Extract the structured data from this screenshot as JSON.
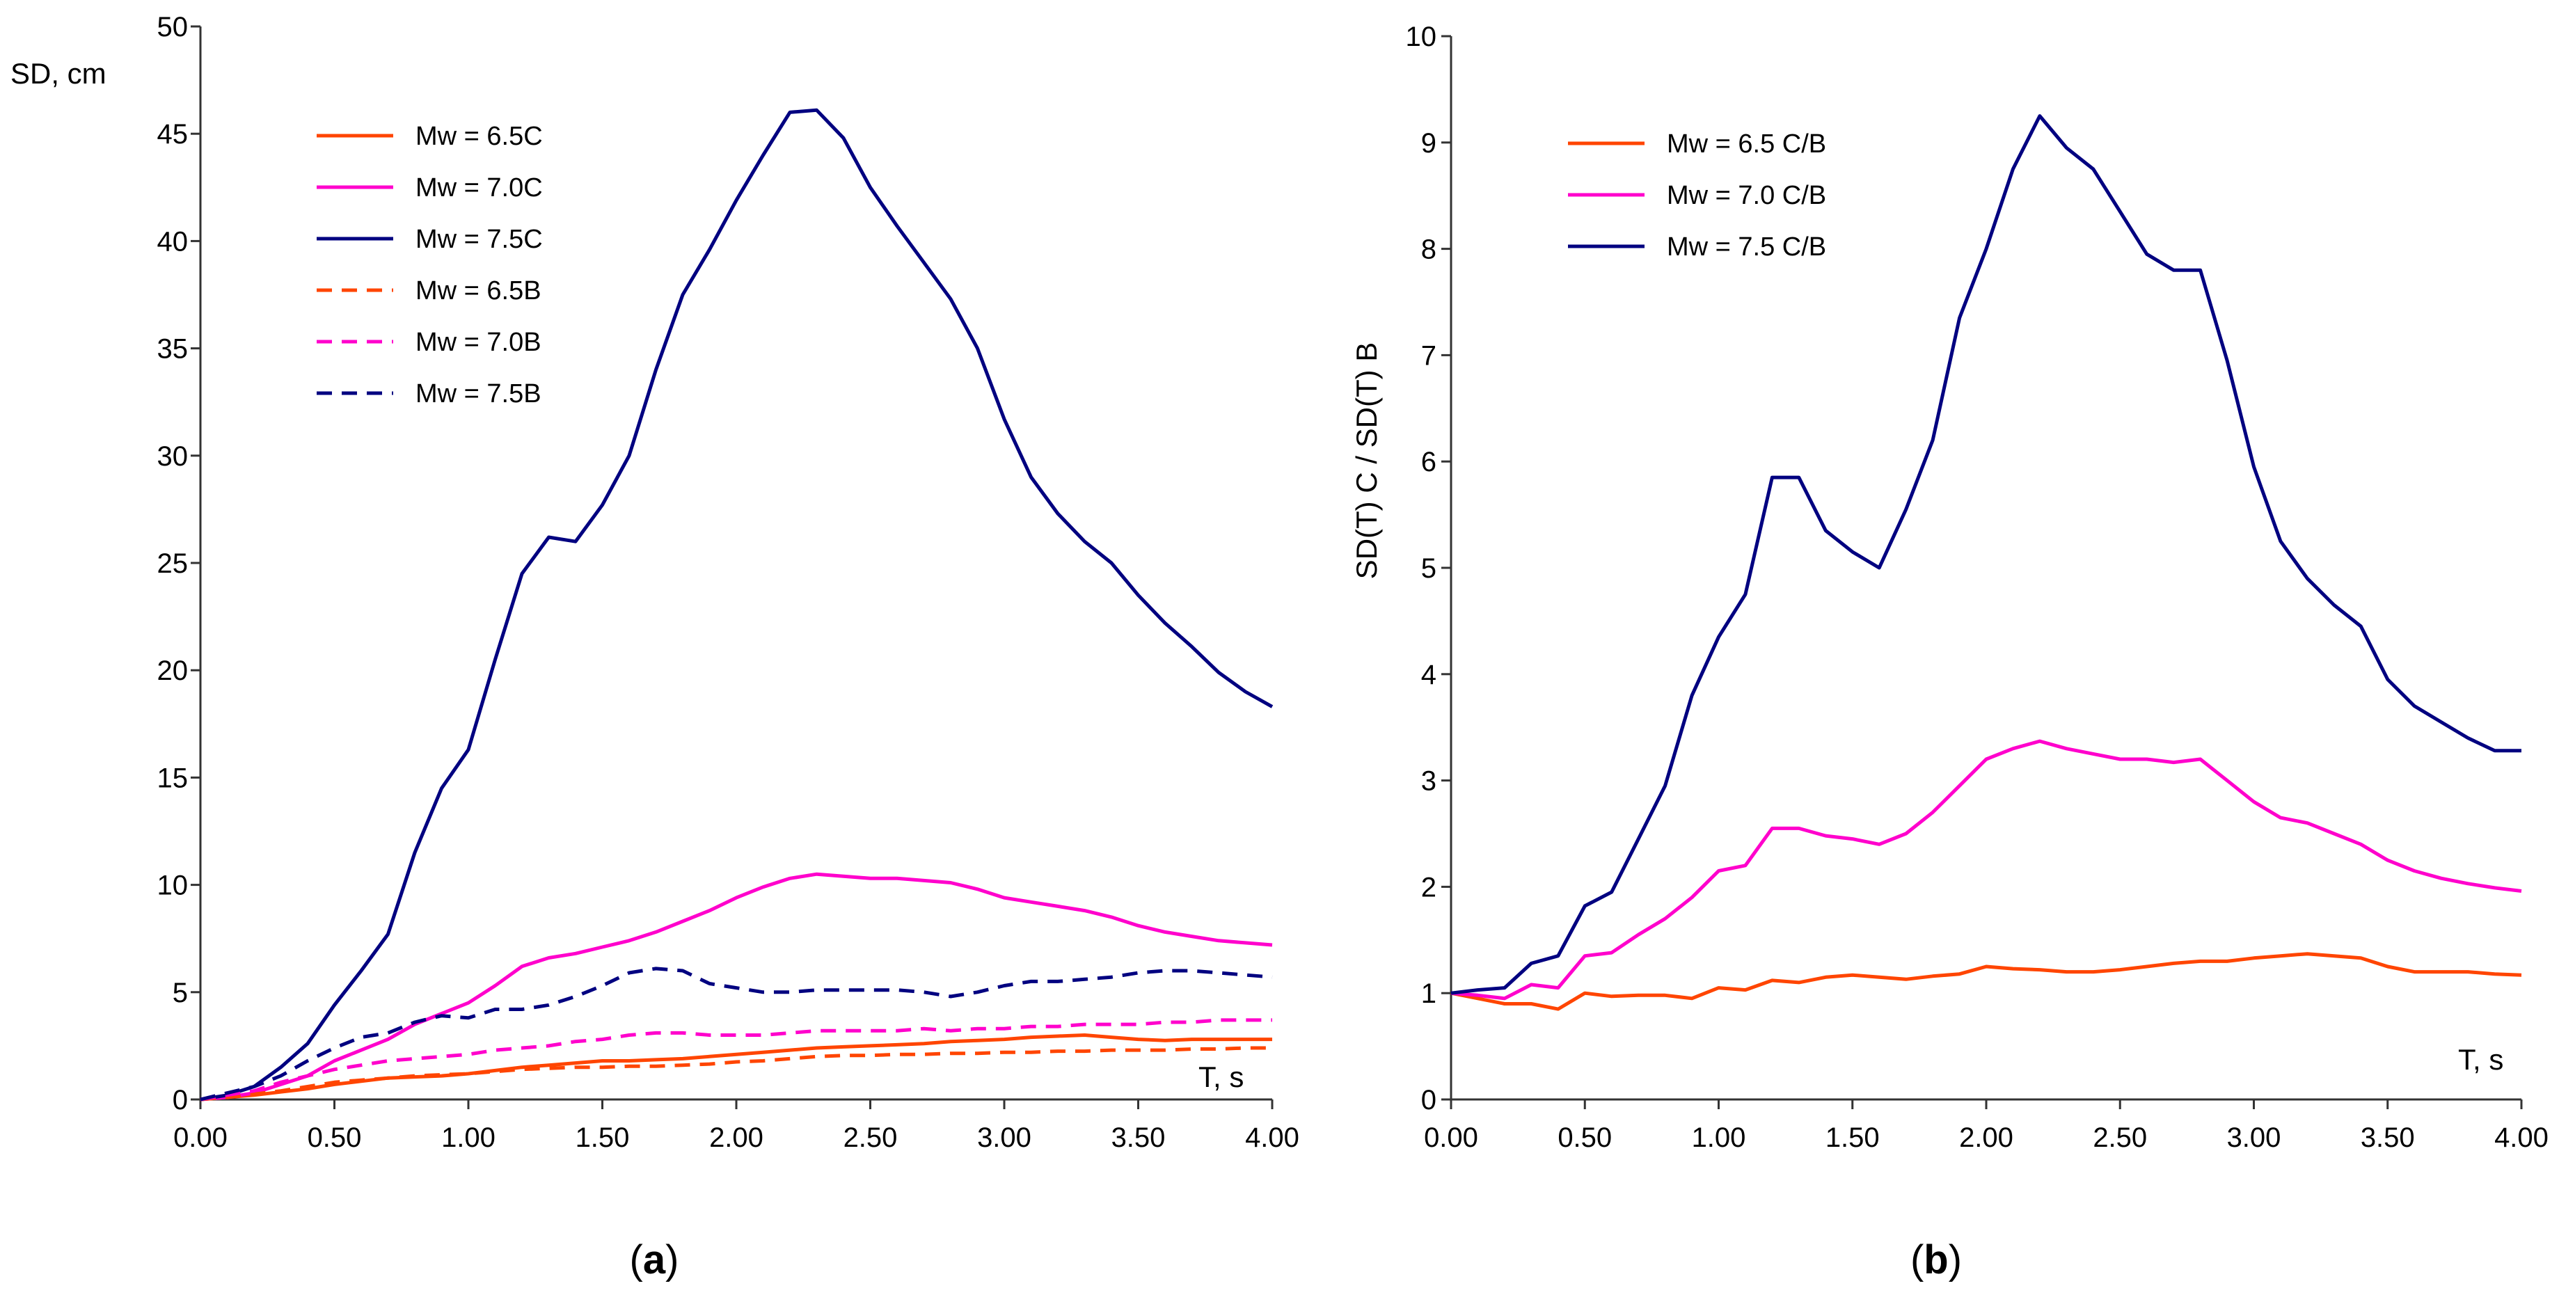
{
  "chart_data": [
    {
      "type": "line",
      "panel_label": {
        "open": "(",
        "letter": "a",
        "close": ")"
      },
      "title": "",
      "xlabel": "T, s",
      "ylabel": "SD, cm",
      "xlim": [
        0,
        4
      ],
      "ylim": [
        0,
        50
      ],
      "xticks": [
        "0.00",
        "0.50",
        "1.00",
        "1.50",
        "2.00",
        "2.50",
        "3.00",
        "3.50",
        "4.00"
      ],
      "yticks": [
        "0",
        "5",
        "10",
        "15",
        "20",
        "25",
        "30",
        "35",
        "40",
        "45",
        "50"
      ],
      "legend_position": "top-left",
      "x": [
        0.0,
        0.1,
        0.2,
        0.3,
        0.4,
        0.5,
        0.6,
        0.7,
        0.8,
        0.9,
        1.0,
        1.1,
        1.2,
        1.3,
        1.4,
        1.5,
        1.6,
        1.7,
        1.8,
        1.9,
        2.0,
        2.1,
        2.2,
        2.3,
        2.4,
        2.5,
        2.6,
        2.7,
        2.8,
        2.9,
        3.0,
        3.1,
        3.2,
        3.3,
        3.4,
        3.5,
        3.6,
        3.7,
        3.8,
        3.9,
        4.0
      ],
      "series": [
        {
          "name": "Mw = 6.5C",
          "color": "#ff4500",
          "dash": false,
          "values": [
            0,
            0.1,
            0.2,
            0.35,
            0.5,
            0.7,
            0.85,
            1.0,
            1.05,
            1.1,
            1.2,
            1.35,
            1.5,
            1.6,
            1.7,
            1.8,
            1.8,
            1.85,
            1.9,
            2.0,
            2.1,
            2.2,
            2.3,
            2.4,
            2.45,
            2.5,
            2.55,
            2.6,
            2.7,
            2.75,
            2.8,
            2.9,
            2.95,
            3.0,
            2.9,
            2.8,
            2.75,
            2.8,
            2.8,
            2.8,
            2.8
          ]
        },
        {
          "name": "Mw = 7.0C",
          "color": "#ff00cc",
          "dash": false,
          "values": [
            0,
            0.1,
            0.3,
            0.7,
            1.1,
            1.8,
            2.3,
            2.8,
            3.5,
            4.0,
            4.5,
            5.3,
            6.2,
            6.6,
            6.8,
            7.1,
            7.4,
            7.8,
            8.3,
            8.8,
            9.4,
            9.9,
            10.3,
            10.5,
            10.4,
            10.3,
            10.3,
            10.2,
            10.1,
            9.8,
            9.4,
            9.2,
            9.0,
            8.8,
            8.5,
            8.1,
            7.8,
            7.6,
            7.4,
            7.3,
            7.2
          ]
        },
        {
          "name": "Mw = 7.5C",
          "color": "#000080",
          "dash": false,
          "values": [
            0,
            0.2,
            0.6,
            1.5,
            2.6,
            4.4,
            6.0,
            7.7,
            11.5,
            14.5,
            16.3,
            20.5,
            24.5,
            26.2,
            26.0,
            27.7,
            30.0,
            34.0,
            37.5,
            39.6,
            41.9,
            44.0,
            46.0,
            46.1,
            44.8,
            42.5,
            40.7,
            39.0,
            37.3,
            35.0,
            31.7,
            29.0,
            27.3,
            26.0,
            25.0,
            23.5,
            22.2,
            21.1,
            19.9,
            19.0,
            18.3
          ]
        },
        {
          "name": "Mw = 6.5B",
          "color": "#ff4500",
          "dash": true,
          "values": [
            0,
            0.1,
            0.25,
            0.4,
            0.6,
            0.8,
            0.9,
            1.0,
            1.1,
            1.15,
            1.2,
            1.3,
            1.4,
            1.45,
            1.5,
            1.5,
            1.55,
            1.55,
            1.6,
            1.65,
            1.75,
            1.8,
            1.9,
            2.0,
            2.05,
            2.05,
            2.1,
            2.1,
            2.15,
            2.15,
            2.2,
            2.2,
            2.25,
            2.25,
            2.3,
            2.3,
            2.3,
            2.35,
            2.35,
            2.4,
            2.4
          ]
        },
        {
          "name": "Mw = 7.0B",
          "color": "#ff00cc",
          "dash": true,
          "values": [
            0,
            0.2,
            0.4,
            0.8,
            1.1,
            1.4,
            1.6,
            1.8,
            1.9,
            2.0,
            2.1,
            2.3,
            2.4,
            2.5,
            2.7,
            2.8,
            3.0,
            3.1,
            3.1,
            3.0,
            3.0,
            3.0,
            3.1,
            3.2,
            3.2,
            3.2,
            3.2,
            3.3,
            3.2,
            3.3,
            3.3,
            3.4,
            3.4,
            3.5,
            3.5,
            3.5,
            3.6,
            3.6,
            3.7,
            3.7,
            3.7
          ]
        },
        {
          "name": "Mw = 7.5B",
          "color": "#000080",
          "dash": true,
          "values": [
            0,
            0.3,
            0.6,
            1.1,
            1.8,
            2.4,
            2.9,
            3.1,
            3.6,
            3.9,
            3.8,
            4.2,
            4.2,
            4.4,
            4.8,
            5.3,
            5.9,
            6.1,
            6.0,
            5.4,
            5.2,
            5.0,
            5.0,
            5.1,
            5.1,
            5.1,
            5.1,
            5.0,
            4.8,
            5.0,
            5.3,
            5.5,
            5.5,
            5.6,
            5.7,
            5.9,
            6.0,
            6.0,
            5.9,
            5.8,
            5.7
          ]
        }
      ]
    },
    {
      "type": "line",
      "panel_label": {
        "open": "(",
        "letter": "b",
        "close": ")"
      },
      "title": "",
      "xlabel": "T, s",
      "ylabel": "SD(T) C / SD(T) B",
      "xlim": [
        0,
        4
      ],
      "ylim": [
        0,
        10
      ],
      "xticks": [
        "0.00",
        "0.50",
        "1.00",
        "1.50",
        "2.00",
        "2.50",
        "3.00",
        "3.50",
        "4.00"
      ],
      "yticks": [
        "0",
        "1",
        "2",
        "3",
        "4",
        "5",
        "6",
        "7",
        "8",
        "9",
        "10"
      ],
      "legend_position": "top-left",
      "x": [
        0.0,
        0.1,
        0.2,
        0.3,
        0.4,
        0.5,
        0.6,
        0.7,
        0.8,
        0.9,
        1.0,
        1.1,
        1.2,
        1.3,
        1.4,
        1.5,
        1.6,
        1.7,
        1.8,
        1.9,
        2.0,
        2.1,
        2.2,
        2.3,
        2.4,
        2.5,
        2.6,
        2.7,
        2.8,
        2.9,
        3.0,
        3.1,
        3.2,
        3.3,
        3.4,
        3.5,
        3.6,
        3.7,
        3.8,
        3.9,
        4.0
      ],
      "series": [
        {
          "name": "Mw = 6.5 C/B",
          "color": "#ff4500",
          "dash": false,
          "values": [
            1.0,
            0.95,
            0.9,
            0.9,
            0.85,
            1.0,
            0.97,
            0.98,
            0.98,
            0.95,
            1.05,
            1.03,
            1.12,
            1.1,
            1.15,
            1.17,
            1.15,
            1.13,
            1.16,
            1.18,
            1.25,
            1.23,
            1.22,
            1.2,
            1.2,
            1.22,
            1.25,
            1.28,
            1.3,
            1.3,
            1.33,
            1.35,
            1.37,
            1.35,
            1.33,
            1.25,
            1.2,
            1.2,
            1.2,
            1.18,
            1.17
          ]
        },
        {
          "name": "Mw = 7.0 C/B",
          "color": "#ff00cc",
          "dash": false,
          "values": [
            1.0,
            0.98,
            0.95,
            1.08,
            1.05,
            1.35,
            1.38,
            1.55,
            1.7,
            1.9,
            2.15,
            2.2,
            2.55,
            2.55,
            2.48,
            2.45,
            2.4,
            2.5,
            2.7,
            2.95,
            3.2,
            3.3,
            3.37,
            3.3,
            3.25,
            3.2,
            3.2,
            3.17,
            3.2,
            3.0,
            2.8,
            2.65,
            2.6,
            2.5,
            2.4,
            2.25,
            2.15,
            2.08,
            2.03,
            1.99,
            1.96
          ]
        },
        {
          "name": "Mw = 7.5 C/B",
          "color": "#000080",
          "dash": false,
          "values": [
            1.0,
            1.03,
            1.05,
            1.28,
            1.35,
            1.82,
            1.95,
            2.45,
            2.95,
            3.8,
            4.35,
            4.75,
            5.85,
            5.85,
            5.35,
            5.15,
            5.0,
            5.55,
            6.2,
            7.35,
            8.0,
            8.75,
            9.25,
            8.95,
            8.75,
            8.35,
            7.95,
            7.8,
            7.8,
            6.95,
            5.95,
            5.25,
            4.9,
            4.65,
            4.45,
            3.95,
            3.7,
            3.55,
            3.4,
            3.28,
            3.28
          ]
        }
      ]
    }
  ]
}
